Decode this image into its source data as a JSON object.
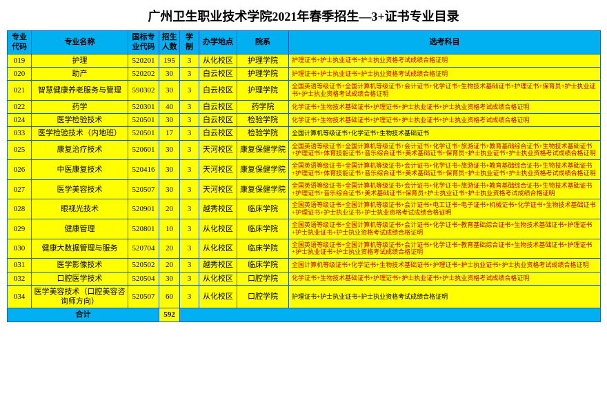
{
  "title": "广州卫生职业技术学院2021年春季招生—3+证书专业目录",
  "headers": [
    "专业代码",
    "专业名称",
    "国标专业代码",
    "招生人数",
    "学制",
    "办学地点",
    "院系",
    "选考科目"
  ],
  "rows": [
    {
      "c0": "019",
      "c1": "护理",
      "c2": "520201",
      "c3": "195",
      "c4": "3",
      "c5": "从化校区",
      "c6": "护理学院",
      "c7": "护理证书+护士执业证书+护士执业资格考试成绩合格证明"
    },
    {
      "c0": "020",
      "c1": "助产",
      "c2": "520202",
      "c3": "30",
      "c4": "3",
      "c5": "白云校区",
      "c6": "护理学院",
      "c7": "护理证书+护士执业证书+护士执业资格考试成绩合格证明"
    },
    {
      "c0": "021",
      "c1": "智慧健康养老服务与管理",
      "c2": "590302",
      "c3": "30",
      "c4": "3",
      "c5": "白云校区",
      "c6": "护理学院",
      "c7": "全国英语等级证书+全国计算机等级证书+会计证书+化学证书+生物技术基础证书+护理证书+保育员+护士执业证书+护士执业资格考试成绩合格证明"
    },
    {
      "c0": "022",
      "c1": "药学",
      "c2": "520301",
      "c3": "40",
      "c4": "3",
      "c5": "白云校区",
      "c6": "药学院",
      "c7": "化学证书+生物技术基础证书+护理证书+护士执业证书+护士执业资格考试成绩合格证明"
    },
    {
      "c0": "024",
      "c1": "医学检验技术",
      "c2": "520501",
      "c3": "30",
      "c4": "3",
      "c5": "白云校区",
      "c6": "检验学院",
      "c7": "化学证书+生物技术基础证书+护理证书+护士执业证书+护士执业资格考试成绩合格证明"
    },
    {
      "c0": "033",
      "c1": "医学检验技术（内地班）",
      "c2": "520501",
      "c3": "17",
      "c4": "3",
      "c5": "白云校区",
      "c6": "检验学院",
      "c7": "全国计算机等级证书+化学证书+生物技术基础证书",
      "black": true
    },
    {
      "c0": "025",
      "c1": "康复治疗技术",
      "c2": "520601",
      "c3": "30",
      "c4": "3",
      "c5": "天河校区",
      "c6": "康复保健学院",
      "c7": "全国英语等级证书+全国计算机等级证书+会计证书+化学证书+旅游证书+教育基础综合证书+生物技术基础证书+护理证书+体育技能证书+音乐综合证书+美术基础证书+保育员+护士执业证书+护士执业资格考试成绩合格证明"
    },
    {
      "c0": "026",
      "c1": "中医康复技术",
      "c2": "520416",
      "c3": "30",
      "c4": "3",
      "c5": "天河校区",
      "c6": "康复保健学院",
      "c7": "全国英语等级证书+全国计算机等级证书+会计证书+化学证书+旅游证书+教育基础综合证书+生物技术基础证书+护理证书+体育技能证书+音乐综合证书+美术基础证书+保育员+护士执业证书+护士执业资格考试成绩合格证明"
    },
    {
      "c0": "027",
      "c1": "医学美容技术",
      "c2": "520507",
      "c3": "30",
      "c4": "3",
      "c5": "天河校区",
      "c6": "康复保健学院",
      "c7": "全国英语等级证书+全国计算机等级证书+会计证书+化学证书+旅游证书+教育基础综合证书+生物技术基础证书+护理证书+音乐综合证书+美术基础证书+保育员+护士执业证书+护士执业资格考试成绩合格证明"
    },
    {
      "c0": "028",
      "c1": "眼视光技术",
      "c2": "520901",
      "c3": "20",
      "c4": "3",
      "c5": "越秀校区",
      "c6": "临床学院",
      "c7": "全国英语等级证书+全国计算机等级证书+会计证书+电工证书+电子证书+机械证书+化学证书+生物技术基础证书+护理证书+护士执业证书+护士执业资格考试成绩合格证明"
    },
    {
      "c0": "029",
      "c1": "健康管理",
      "c2": "520801",
      "c3": "10",
      "c4": "3",
      "c5": "从化校区",
      "c6": "临床学院",
      "c7": "全国英语等级证书+全国计算机等级证书+会计证书+化学证书+教育基础综合证书+生物技术基础证书+护理证书+护士执业证书+护士执业资格考试成绩合格证明"
    },
    {
      "c0": "030",
      "c1": "健康大数据管理与服务",
      "c2": "520704",
      "c3": "20",
      "c4": "3",
      "c5": "从化校区",
      "c6": "临床学院",
      "c7": "全国英语等级证书+全国计算机等级证书+会计证书+化学证书+教育基础综合证书+生物技术基础证书+护理证书+护士执业证书+护士执业资格考试成绩合格证明"
    },
    {
      "c0": "031",
      "c1": "医学影像技术",
      "c2": "520502",
      "c3": "20",
      "c4": "3",
      "c5": "越秀校区",
      "c6": "临床学院",
      "c7": "全国计算机等级证书+化学证书+生物技术基础证书+护理证书+护士执业证书+护士执业资格考试成绩合格证明"
    },
    {
      "c0": "032",
      "c1": "口腔医学技术",
      "c2": "520504",
      "c3": "30",
      "c4": "3",
      "c5": "从化校区",
      "c6": "口腔学院",
      "c7": "化学证书+生物技术基础证书+护理证书+护士执业证书+护士执业资格考试成绩合格证明"
    },
    {
      "c0": "034",
      "c1": "医学美容技术（口腔美容咨询师方向）",
      "c2": "520507",
      "c3": "60",
      "c4": "3",
      "c5": "从化校区",
      "c6": "口腔学院",
      "c7": "护理证书+护士执业证书+护士执业资格考试成绩合格证明",
      "black": true
    }
  ],
  "total_label": "合计",
  "total_value": "592"
}
